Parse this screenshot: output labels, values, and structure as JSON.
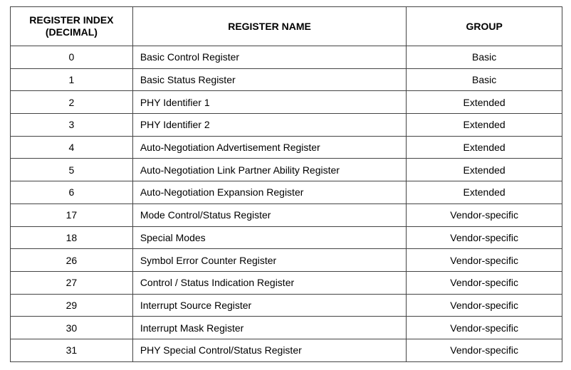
{
  "table": {
    "headers": [
      "REGISTER INDEX (DECIMAL)",
      "REGISTER NAME",
      "GROUP"
    ],
    "header_index_line1": "REGISTER INDEX",
    "header_index_line2": "(DECIMAL)",
    "rows": [
      {
        "index": "0",
        "name": "Basic Control Register",
        "group": "Basic"
      },
      {
        "index": "1",
        "name": "Basic Status Register",
        "group": "Basic"
      },
      {
        "index": "2",
        "name": "PHY Identifier 1",
        "group": "Extended"
      },
      {
        "index": "3",
        "name": "PHY Identifier 2",
        "group": "Extended"
      },
      {
        "index": "4",
        "name": "Auto-Negotiation Advertisement Register",
        "group": "Extended"
      },
      {
        "index": "5",
        "name": "Auto-Negotiation Link Partner Ability Register",
        "group": "Extended"
      },
      {
        "index": "6",
        "name": "Auto-Negotiation Expansion Register",
        "group": "Extended"
      },
      {
        "index": "17",
        "name": "Mode Control/Status Register",
        "group": "Vendor-specific"
      },
      {
        "index": "18",
        "name": "Special Modes",
        "group": "Vendor-specific"
      },
      {
        "index": "26",
        "name": "Symbol Error Counter Register",
        "group": "Vendor-specific"
      },
      {
        "index": "27",
        "name": "Control / Status Indication Register",
        "group": "Vendor-specific"
      },
      {
        "index": "29",
        "name": "Interrupt Source Register",
        "group": "Vendor-specific"
      },
      {
        "index": "30",
        "name": "Interrupt Mask Register",
        "group": "Vendor-specific"
      },
      {
        "index": "31",
        "name": "PHY Special Control/Status Register",
        "group": "Vendor-specific"
      }
    ]
  }
}
